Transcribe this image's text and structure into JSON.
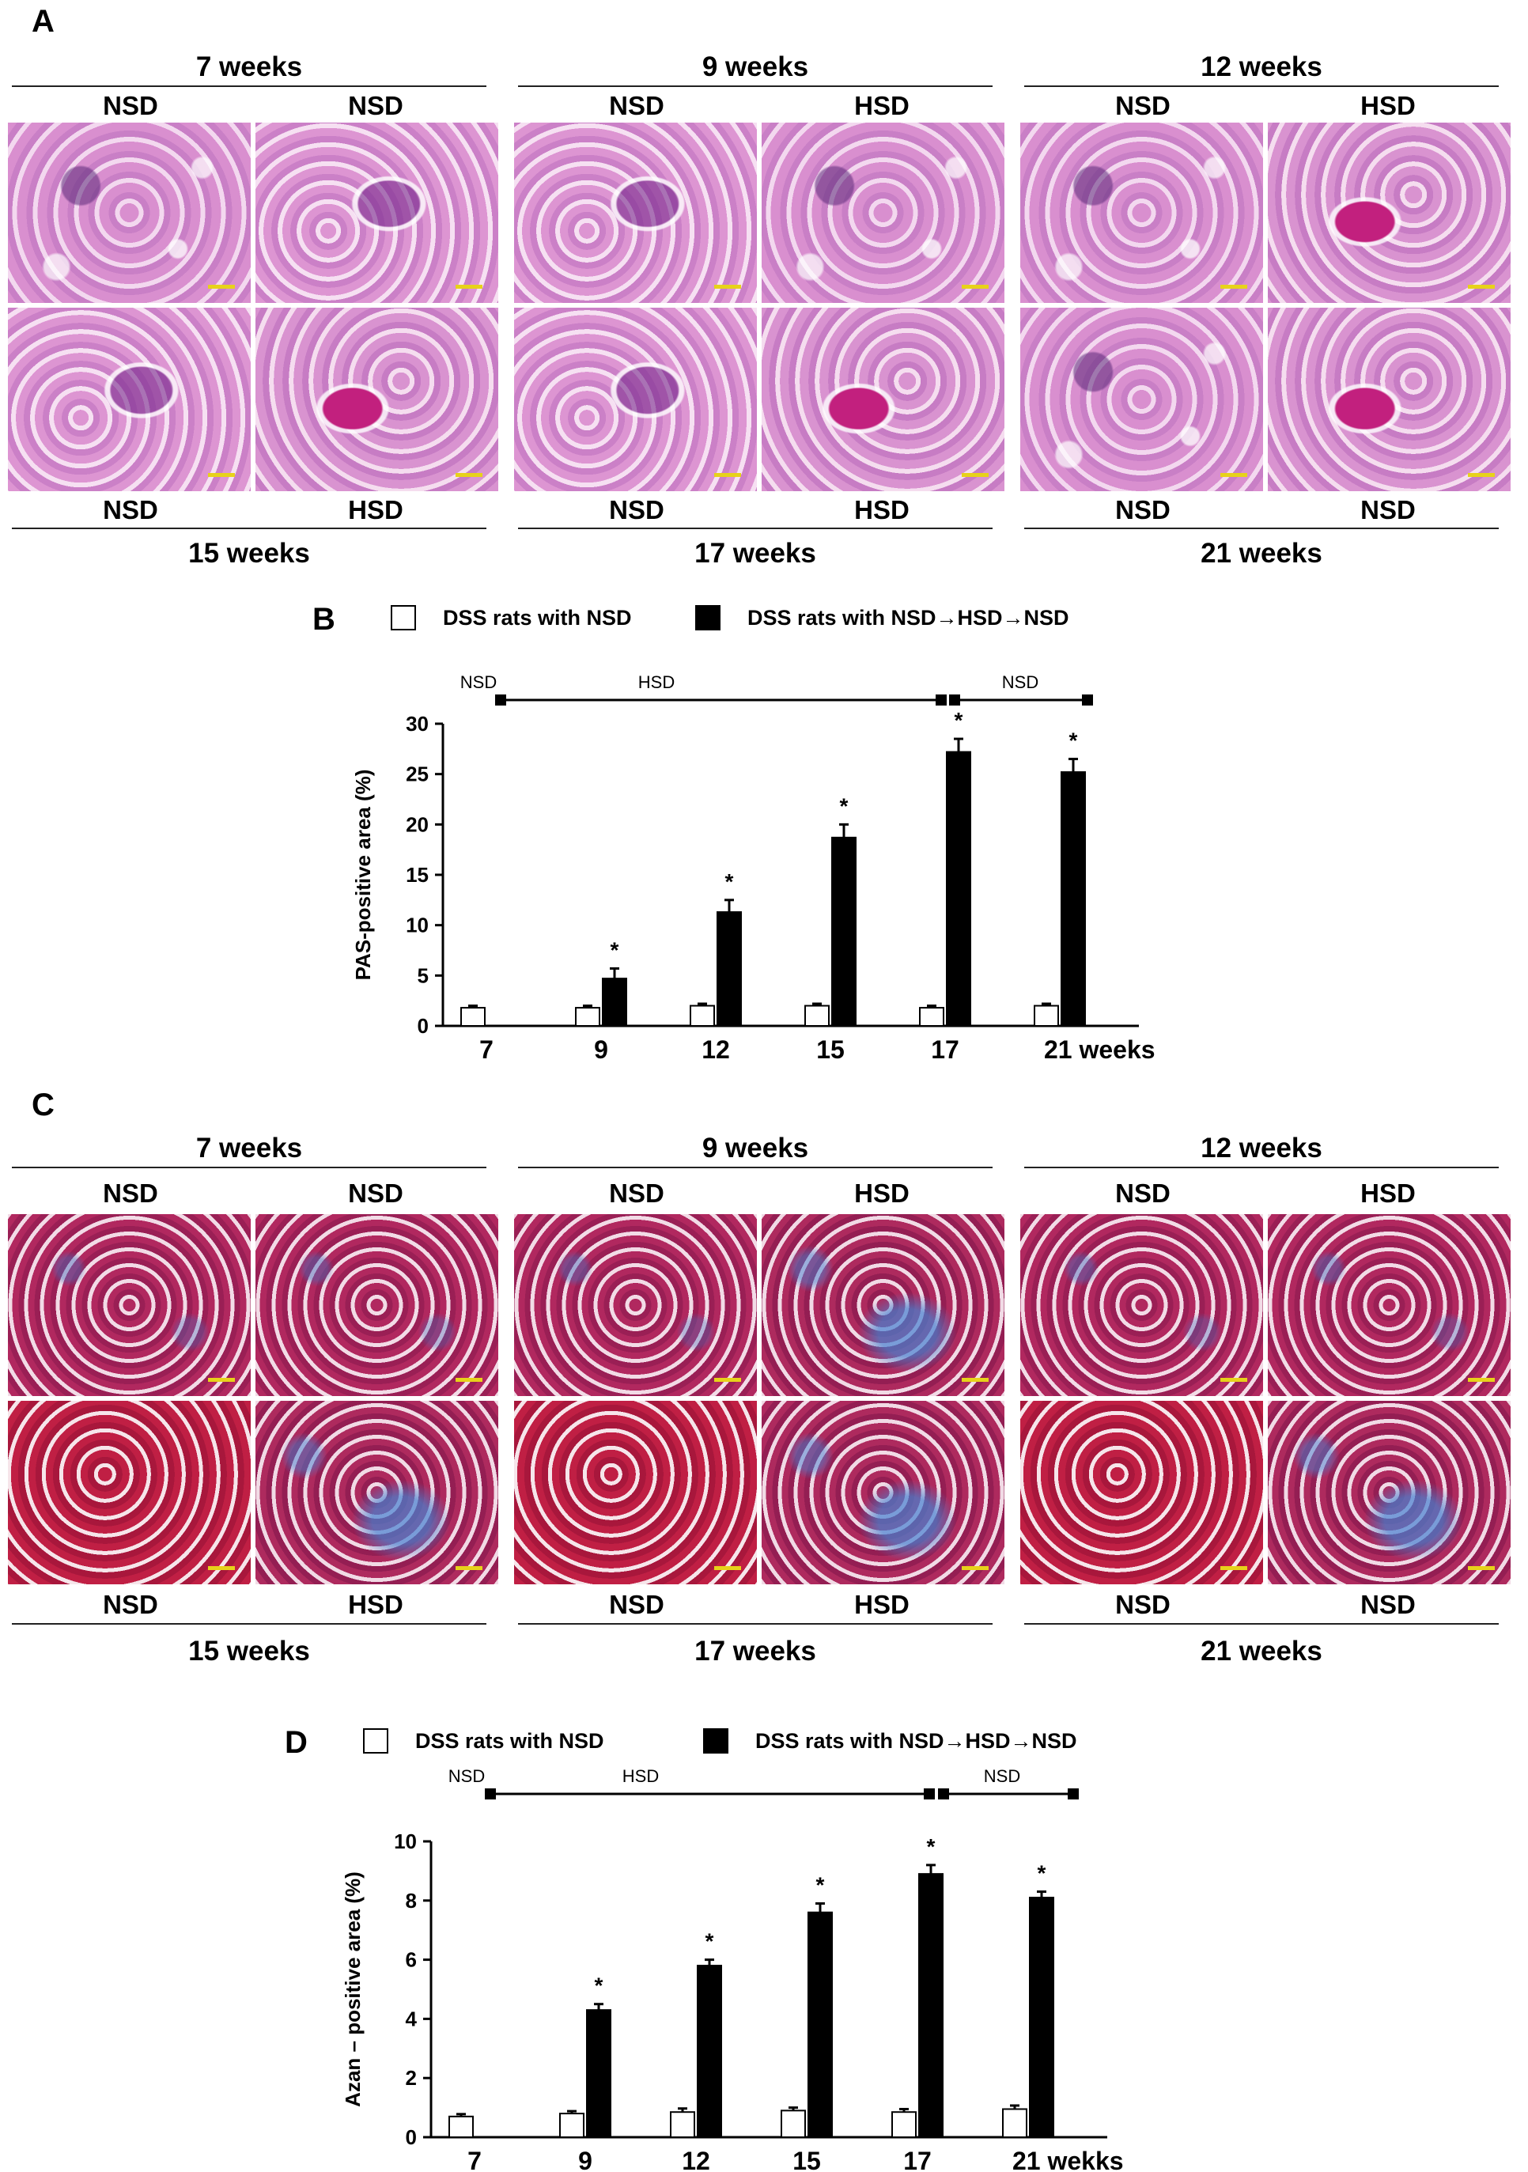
{
  "panels": {
    "A": {
      "letter": "A",
      "weeks_top": [
        "7 weeks",
        "9 weeks",
        "12 weeks"
      ],
      "weeks_bottom": [
        "15 weeks",
        "17 weeks",
        "21 weeks"
      ],
      "diets_top": [
        "NSD",
        "NSD",
        "NSD",
        "HSD",
        "NSD",
        "HSD"
      ],
      "diets_bottom": [
        "NSD",
        "HSD",
        "NSD",
        "HSD",
        "NSD",
        "NSD"
      ]
    },
    "C": {
      "letter": "C",
      "weeks_top": [
        "7 weeks",
        "9 weeks",
        "12 weeks"
      ],
      "weeks_bottom": [
        "15 weeks",
        "17 weeks",
        "21 weeks"
      ],
      "diets_top": [
        "NSD",
        "NSD",
        "NSD",
        "HSD",
        "NSD",
        "HSD"
      ],
      "diets_bottom": [
        "NSD",
        "HSD",
        "NSD",
        "HSD",
        "NSD",
        "NSD"
      ]
    }
  },
  "chart_data": [
    {
      "panel": "B",
      "type": "bar",
      "ylabel": "PAS-positive  area (%)",
      "ylim": [
        0,
        30
      ],
      "yticks": [
        0,
        5,
        10,
        15,
        20,
        25,
        30
      ],
      "categories": [
        "7",
        "9",
        "12",
        "15",
        "17",
        "21 weeks"
      ],
      "legend": [
        "DSS rats with NSD",
        "DSS rats with NSD→HSD→NSD"
      ],
      "diet_timeline": [
        "NSD",
        "HSD",
        "NSD"
      ],
      "series": [
        {
          "name": "DSS rats with NSD",
          "color": "#ffffff",
          "values": [
            1.8,
            1.8,
            2.0,
            2.0,
            1.8,
            2.0
          ],
          "errors": [
            0.2,
            0.2,
            0.2,
            0.2,
            0.2,
            0.2
          ]
        },
        {
          "name": "DSS rats with NSD→HSD→NSD",
          "color": "#000000",
          "values": [
            null,
            4.7,
            11.3,
            18.7,
            27.2,
            25.2
          ],
          "errors": [
            null,
            1.0,
            1.2,
            1.3,
            1.3,
            1.3
          ],
          "marks": [
            "",
            "*",
            "*",
            "*",
            "*",
            "*"
          ]
        }
      ]
    },
    {
      "panel": "D",
      "type": "bar",
      "ylabel": "Azan – positive  area (%)",
      "ylim": [
        0,
        10
      ],
      "yticks": [
        0,
        2,
        4,
        6,
        8,
        10
      ],
      "categories": [
        "7",
        "9",
        "12",
        "15",
        "17",
        "21 wekks"
      ],
      "legend": [
        "DSS rats with NSD",
        "DSS rats with NSD→HSD→NSD"
      ],
      "diet_timeline": [
        "NSD",
        "HSD",
        "NSD"
      ],
      "series": [
        {
          "name": "DSS rats with NSD",
          "color": "#ffffff",
          "values": [
            0.7,
            0.8,
            0.85,
            0.9,
            0.85,
            0.95
          ],
          "errors": [
            0.08,
            0.08,
            0.12,
            0.1,
            0.1,
            0.12
          ]
        },
        {
          "name": "DSS rats with NSD→HSD→NSD",
          "color": "#000000",
          "values": [
            null,
            4.3,
            5.8,
            7.6,
            8.9,
            8.1
          ],
          "errors": [
            null,
            0.2,
            0.2,
            0.3,
            0.3,
            0.2
          ],
          "marks": [
            "",
            "*",
            "*",
            "*",
            "*",
            "*"
          ]
        }
      ]
    }
  ]
}
